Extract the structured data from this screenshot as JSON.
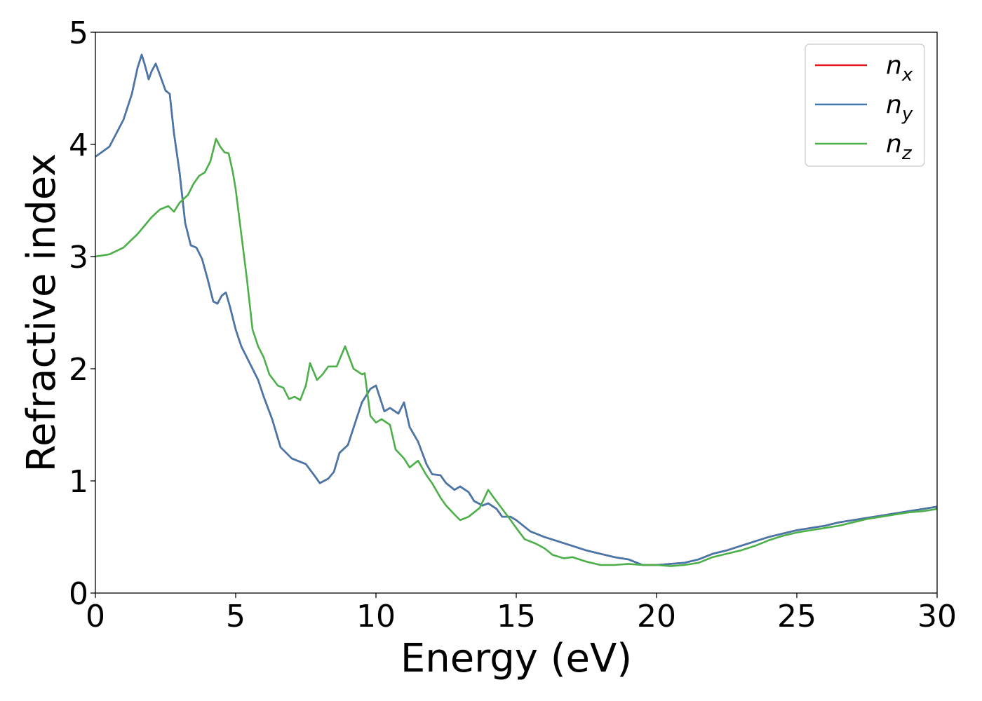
{
  "chart_data": {
    "type": "line",
    "xlabel": "Energy (eV)",
    "ylabel": "Refractive index",
    "xlim": [
      0,
      30
    ],
    "ylim": [
      0,
      5
    ],
    "xticks": [
      0,
      5,
      10,
      15,
      20,
      25,
      30
    ],
    "yticks": [
      0,
      1,
      2,
      3,
      4,
      5
    ],
    "grid": false,
    "legend_position": "top-right",
    "series": [
      {
        "name": "n_x",
        "label_base": "n",
        "label_sub": "x",
        "color": "#e41a1c",
        "x": [
          0,
          0.5,
          1.0,
          1.3,
          1.5,
          1.65,
          1.75,
          1.9,
          2.0,
          2.15,
          2.3,
          2.5,
          2.65,
          2.8,
          3.0,
          3.2,
          3.4,
          3.6,
          3.8,
          4.0,
          4.2,
          4.35,
          4.5,
          4.65,
          4.8,
          5.0,
          5.2,
          5.5,
          5.8,
          6.0,
          6.3,
          6.6,
          7.0,
          7.5,
          7.8,
          8.0,
          8.3,
          8.5,
          8.7,
          9.0,
          9.3,
          9.5,
          9.8,
          10.0,
          10.3,
          10.5,
          10.8,
          11.0,
          11.2,
          11.5,
          11.8,
          12.0,
          12.3,
          12.5,
          12.8,
          13.0,
          13.3,
          13.5,
          13.8,
          14.0,
          14.3,
          14.5,
          14.8,
          15.0,
          15.5,
          16.0,
          16.5,
          17.0,
          17.5,
          18.0,
          18.5,
          19.0,
          19.5,
          20.0,
          20.5,
          21.0,
          21.5,
          22.0,
          22.5,
          23.0,
          23.5,
          24.0,
          24.5,
          25.0,
          25.5,
          26.0,
          26.5,
          27.0,
          27.5,
          28.0,
          28.5,
          29.0,
          29.5,
          30.0
        ],
        "y": [
          3.89,
          3.98,
          4.22,
          4.45,
          4.68,
          4.8,
          4.72,
          4.58,
          4.65,
          4.72,
          4.62,
          4.48,
          4.45,
          4.1,
          3.75,
          3.3,
          3.1,
          3.08,
          2.98,
          2.8,
          2.6,
          2.58,
          2.65,
          2.68,
          2.55,
          2.35,
          2.2,
          2.05,
          1.9,
          1.75,
          1.55,
          1.3,
          1.2,
          1.15,
          1.05,
          0.98,
          1.02,
          1.08,
          1.25,
          1.32,
          1.55,
          1.7,
          1.82,
          1.85,
          1.62,
          1.65,
          1.6,
          1.7,
          1.48,
          1.35,
          1.15,
          1.06,
          1.05,
          0.98,
          0.92,
          0.95,
          0.9,
          0.82,
          0.78,
          0.8,
          0.75,
          0.68,
          0.68,
          0.65,
          0.55,
          0.5,
          0.46,
          0.42,
          0.38,
          0.35,
          0.32,
          0.3,
          0.25,
          0.25,
          0.26,
          0.27,
          0.3,
          0.35,
          0.38,
          0.42,
          0.46,
          0.5,
          0.53,
          0.56,
          0.58,
          0.6,
          0.63,
          0.65,
          0.67,
          0.69,
          0.71,
          0.73,
          0.75,
          0.77
        ]
      },
      {
        "name": "n_y",
        "label_base": "n",
        "label_sub": "y",
        "color": "#4478ab",
        "x": [
          0,
          0.5,
          1.0,
          1.3,
          1.5,
          1.65,
          1.75,
          1.9,
          2.0,
          2.15,
          2.3,
          2.5,
          2.65,
          2.8,
          3.0,
          3.2,
          3.4,
          3.6,
          3.8,
          4.0,
          4.2,
          4.35,
          4.5,
          4.65,
          4.8,
          5.0,
          5.2,
          5.5,
          5.8,
          6.0,
          6.3,
          6.6,
          7.0,
          7.5,
          7.8,
          8.0,
          8.3,
          8.5,
          8.7,
          9.0,
          9.3,
          9.5,
          9.8,
          10.0,
          10.3,
          10.5,
          10.8,
          11.0,
          11.2,
          11.5,
          11.8,
          12.0,
          12.3,
          12.5,
          12.8,
          13.0,
          13.3,
          13.5,
          13.8,
          14.0,
          14.3,
          14.5,
          14.8,
          15.0,
          15.5,
          16.0,
          16.5,
          17.0,
          17.5,
          18.0,
          18.5,
          19.0,
          19.5,
          20.0,
          20.5,
          21.0,
          21.5,
          22.0,
          22.5,
          23.0,
          23.5,
          24.0,
          24.5,
          25.0,
          25.5,
          26.0,
          26.5,
          27.0,
          27.5,
          28.0,
          28.5,
          29.0,
          29.5,
          30.0
        ],
        "y": [
          3.89,
          3.98,
          4.22,
          4.45,
          4.68,
          4.8,
          4.72,
          4.58,
          4.65,
          4.72,
          4.62,
          4.48,
          4.45,
          4.1,
          3.75,
          3.3,
          3.1,
          3.08,
          2.98,
          2.8,
          2.6,
          2.58,
          2.65,
          2.68,
          2.55,
          2.35,
          2.2,
          2.05,
          1.9,
          1.75,
          1.55,
          1.3,
          1.2,
          1.15,
          1.05,
          0.98,
          1.02,
          1.08,
          1.25,
          1.32,
          1.55,
          1.7,
          1.82,
          1.85,
          1.62,
          1.65,
          1.6,
          1.7,
          1.48,
          1.35,
          1.15,
          1.06,
          1.05,
          0.98,
          0.92,
          0.95,
          0.9,
          0.82,
          0.78,
          0.8,
          0.75,
          0.68,
          0.68,
          0.65,
          0.55,
          0.5,
          0.46,
          0.42,
          0.38,
          0.35,
          0.32,
          0.3,
          0.25,
          0.25,
          0.26,
          0.27,
          0.3,
          0.35,
          0.38,
          0.42,
          0.46,
          0.5,
          0.53,
          0.56,
          0.58,
          0.6,
          0.63,
          0.65,
          0.67,
          0.69,
          0.71,
          0.73,
          0.75,
          0.77
        ]
      },
      {
        "name": "n_z",
        "label_base": "n",
        "label_sub": "z",
        "color": "#4daf4a",
        "x": [
          0,
          0.5,
          1.0,
          1.5,
          2.0,
          2.3,
          2.6,
          2.8,
          3.0,
          3.3,
          3.5,
          3.7,
          3.9,
          4.1,
          4.3,
          4.45,
          4.6,
          4.75,
          4.9,
          5.0,
          5.2,
          5.4,
          5.6,
          5.8,
          6.0,
          6.2,
          6.5,
          6.7,
          6.9,
          7.1,
          7.3,
          7.5,
          7.65,
          7.9,
          8.1,
          8.3,
          8.6,
          8.9,
          9.2,
          9.5,
          9.6,
          9.8,
          10.0,
          10.2,
          10.5,
          10.7,
          11.0,
          11.2,
          11.5,
          11.8,
          12.0,
          12.3,
          12.5,
          12.8,
          13.0,
          13.3,
          13.5,
          13.7,
          14.0,
          14.2,
          14.5,
          14.8,
          15.0,
          15.3,
          15.7,
          16.0,
          16.3,
          16.7,
          17.0,
          17.5,
          18.0,
          18.5,
          19.0,
          19.5,
          20.0,
          20.5,
          21.0,
          21.5,
          22.0,
          22.5,
          23.0,
          23.5,
          24.0,
          24.5,
          25.0,
          25.5,
          26.0,
          26.5,
          27.0,
          27.5,
          28.0,
          28.5,
          29.0,
          29.5,
          30.0
        ],
        "y": [
          3.0,
          3.02,
          3.08,
          3.2,
          3.35,
          3.42,
          3.45,
          3.4,
          3.48,
          3.55,
          3.65,
          3.72,
          3.75,
          3.85,
          4.05,
          3.98,
          3.93,
          3.92,
          3.75,
          3.6,
          3.2,
          2.8,
          2.35,
          2.2,
          2.1,
          1.95,
          1.85,
          1.83,
          1.73,
          1.75,
          1.72,
          1.85,
          2.05,
          1.9,
          1.95,
          2.02,
          2.02,
          2.2,
          2.0,
          1.95,
          1.96,
          1.58,
          1.52,
          1.55,
          1.5,
          1.28,
          1.2,
          1.12,
          1.18,
          1.05,
          0.98,
          0.85,
          0.78,
          0.7,
          0.65,
          0.68,
          0.72,
          0.76,
          0.92,
          0.85,
          0.75,
          0.65,
          0.58,
          0.48,
          0.44,
          0.4,
          0.34,
          0.31,
          0.32,
          0.28,
          0.25,
          0.25,
          0.26,
          0.25,
          0.25,
          0.24,
          0.25,
          0.27,
          0.32,
          0.35,
          0.38,
          0.42,
          0.47,
          0.51,
          0.54,
          0.56,
          0.58,
          0.6,
          0.63,
          0.66,
          0.68,
          0.7,
          0.72,
          0.73,
          0.75
        ]
      }
    ]
  }
}
